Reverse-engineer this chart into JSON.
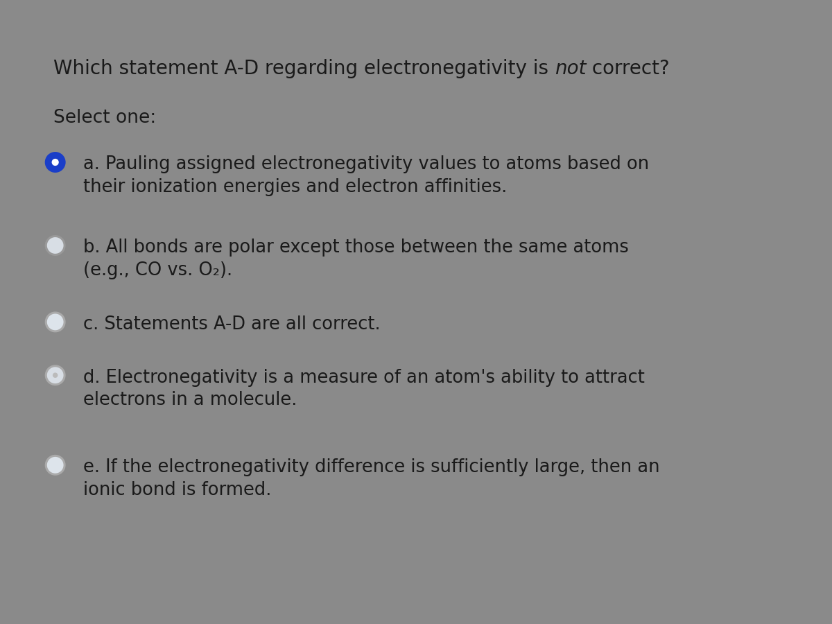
{
  "bg_top_strip_color": "#8a8a8a",
  "bg_card_color": "#dde4eb",
  "text_color": "#1a1a1a",
  "title_prefix": "Which statement A-D regarding electronegativity is ",
  "title_italic": "not",
  "title_suffix": " correct?",
  "select_label": "Select one:",
  "options": [
    {
      "letter": "a",
      "line1": "a. Pauling assigned electronegativity values to atoms based on",
      "line2": "their ionization energies and electron affinities.",
      "selected": true,
      "radio_outer_color": "#1a3ec8",
      "radio_inner_color": "#1a3ec8",
      "has_inner_dot": false
    },
    {
      "letter": "b",
      "line1": "b. All bonds are polar except those between the same atoms",
      "line2": "(e.g., CO vs. O₂).",
      "selected": false,
      "radio_outer_color": "#999999",
      "radio_inner_color": "#d8dee5",
      "has_inner_dot": false
    },
    {
      "letter": "c",
      "line1": "c. Statements A-D are all correct.",
      "line2": "",
      "selected": false,
      "radio_outer_color": "#aaaaaa",
      "radio_inner_color": "#dde4eb",
      "has_inner_dot": false
    },
    {
      "letter": "d",
      "line1": "d. Electronegativity is a measure of an atom's ability to attract",
      "line2": "electrons in a molecule.",
      "selected": false,
      "radio_outer_color": "#aaaaaa",
      "radio_inner_color": "#d8dee5",
      "has_inner_dot": true
    },
    {
      "letter": "e",
      "line1": "e. If the electronegativity difference is sufficiently large, then an",
      "line2": "ionic bond is formed.",
      "selected": false,
      "radio_outer_color": "#aaaaaa",
      "radio_inner_color": "#dde4eb",
      "has_inner_dot": false
    }
  ],
  "title_fontsize": 20,
  "select_fontsize": 19,
  "option_fontsize": 18.5
}
